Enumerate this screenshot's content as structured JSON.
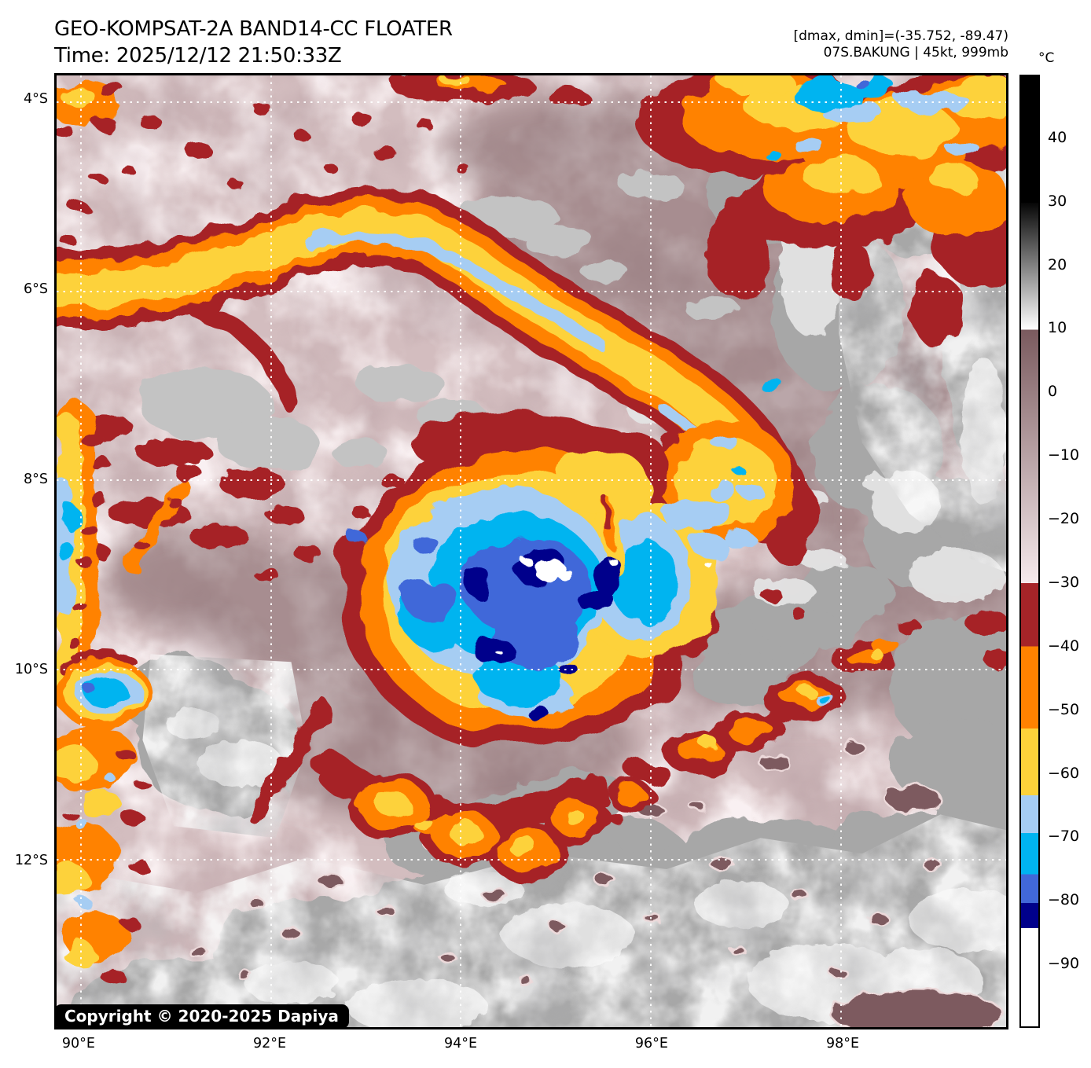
{
  "header": {
    "title": "GEO-KOMPSAT-2A BAND14-CC FLOATER",
    "subtitle": "Time: 2025/12/12 21:50:33Z",
    "annotations": [
      "[dmax, dmin]=(-35.752, -89.47)",
      "07S.BAKUNG | 45kt, 999mb"
    ]
  },
  "map": {
    "copyright": "Copyright © 2020-2025 Dapiya",
    "x_axis": {
      "ticks": [
        {
          "label": "90°E",
          "f": 0.0255
        },
        {
          "label": "92°E",
          "f": 0.2257
        },
        {
          "label": "94°E",
          "f": 0.4259
        },
        {
          "label": "96°E",
          "f": 0.626
        },
        {
          "label": "98°E",
          "f": 0.8262
        }
      ]
    },
    "y_axis": {
      "ticks": [
        {
          "label": "4°S",
          "f": 0.0279
        },
        {
          "label": "6°S",
          "f": 0.2267
        },
        {
          "label": "8°S",
          "f": 0.4256
        },
        {
          "label": "10°S",
          "f": 0.6245
        },
        {
          "label": "12°S",
          "f": 0.8241
        }
      ]
    }
  },
  "colorbar": {
    "unit": "°C",
    "domain": [
      50,
      -100
    ],
    "ticks": [
      {
        "value": 40,
        "label": "40"
      },
      {
        "value": 30,
        "label": "30"
      },
      {
        "value": 20,
        "label": "20"
      },
      {
        "value": 10,
        "label": "10"
      },
      {
        "value": 0,
        "label": "0"
      },
      {
        "value": -10,
        "label": "−10"
      },
      {
        "value": -20,
        "label": "−20"
      },
      {
        "value": -30,
        "label": "−30"
      },
      {
        "value": -40,
        "label": "−40"
      },
      {
        "value": -50,
        "label": "−50"
      },
      {
        "value": -60,
        "label": "−60"
      },
      {
        "value": -70,
        "label": "−70"
      },
      {
        "value": -80,
        "label": "−80"
      },
      {
        "value": -90,
        "label": "−90"
      }
    ],
    "segments": [
      {
        "t0": 50,
        "t1": 30,
        "c0": "#000000",
        "c1": "#000000"
      },
      {
        "t0": 30,
        "t1": 10,
        "c0": "#060606",
        "c1": "#ffffff"
      },
      {
        "t0": 10,
        "t1": -30,
        "c0": "#7a5a5e",
        "c1": "#f6eaec"
      },
      {
        "t0": -30,
        "t1": -40,
        "c0": "#a62428",
        "c1": "#a62428"
      },
      {
        "t0": -40,
        "t1": -53,
        "c0": "#ff8200",
        "c1": "#ff8200"
      },
      {
        "t0": -53,
        "t1": -63.5,
        "c0": "#fdd23a",
        "c1": "#fdd23a"
      },
      {
        "t0": -63.5,
        "t1": -69.5,
        "c0": "#a6cdf3",
        "c1": "#a6cdf3"
      },
      {
        "t0": -69.5,
        "t1": -76,
        "c0": "#00b4f0",
        "c1": "#00b4f0"
      },
      {
        "t0": -76,
        "t1": -80.5,
        "c0": "#4168d9",
        "c1": "#4168d9"
      },
      {
        "t0": -80.5,
        "t1": -84.5,
        "c0": "#00008b",
        "c1": "#00008b"
      },
      {
        "t0": -84.5,
        "t1": -100,
        "c0": "#ffffff",
        "c1": "#ffffff"
      }
    ]
  }
}
